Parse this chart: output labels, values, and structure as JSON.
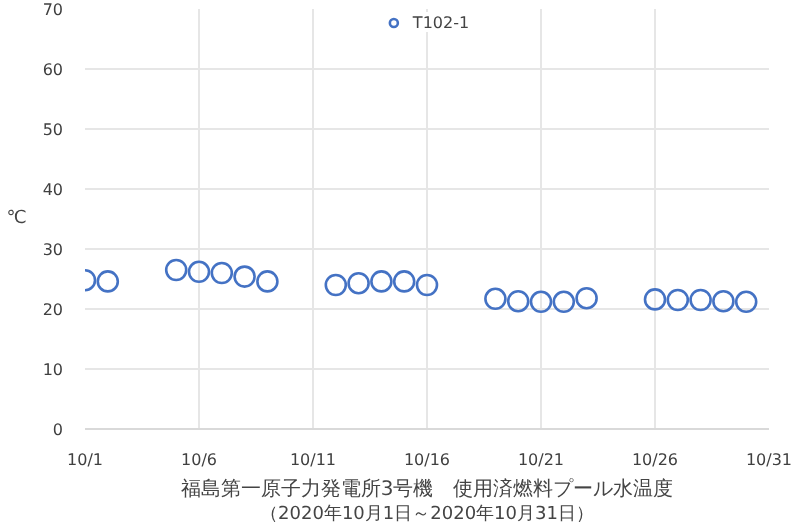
{
  "chart_data": {
    "type": "scatter",
    "title": "福島第一原子力発電所3号機　使用済燃料プール水温度",
    "subtitle": "（2020年10月1日～2020年10月31日）",
    "ylabel": "℃",
    "x": [
      "2020-10-01",
      "2020-10-02",
      "2020-10-05",
      "2020-10-06",
      "2020-10-07",
      "2020-10-08",
      "2020-10-09",
      "2020-10-12",
      "2020-10-13",
      "2020-10-14",
      "2020-10-15",
      "2020-10-16",
      "2020-10-19",
      "2020-10-20",
      "2020-10-21",
      "2020-10-22",
      "2020-10-23",
      "2020-10-26",
      "2020-10-27",
      "2020-10-28",
      "2020-10-29",
      "2020-10-30"
    ],
    "series": [
      {
        "name": "T102-1",
        "color": "#4472c4",
        "values": [
          24.8,
          24.6,
          26.5,
          26.2,
          26.0,
          25.4,
          24.6,
          24.0,
          24.3,
          24.6,
          24.6,
          24.0,
          21.7,
          21.3,
          21.2,
          21.2,
          21.8,
          21.6,
          21.5,
          21.5,
          21.3,
          21.2
        ]
      }
    ],
    "xlim": [
      "2020-10-01",
      "2020-10-31"
    ],
    "xticks": [
      {
        "value": "2020-10-01",
        "label": "10/1"
      },
      {
        "value": "2020-10-06",
        "label": "10/6"
      },
      {
        "value": "2020-10-11",
        "label": "10/11"
      },
      {
        "value": "2020-10-16",
        "label": "10/16"
      },
      {
        "value": "2020-10-21",
        "label": "10/21"
      },
      {
        "value": "2020-10-26",
        "label": "10/26"
      },
      {
        "value": "2020-10-31",
        "label": "10/31"
      }
    ],
    "ylim": [
      0,
      70
    ],
    "yticks": [
      0,
      10,
      20,
      30,
      40,
      50,
      60,
      70
    ],
    "grid": true,
    "legend": "top",
    "marker": "circle"
  }
}
